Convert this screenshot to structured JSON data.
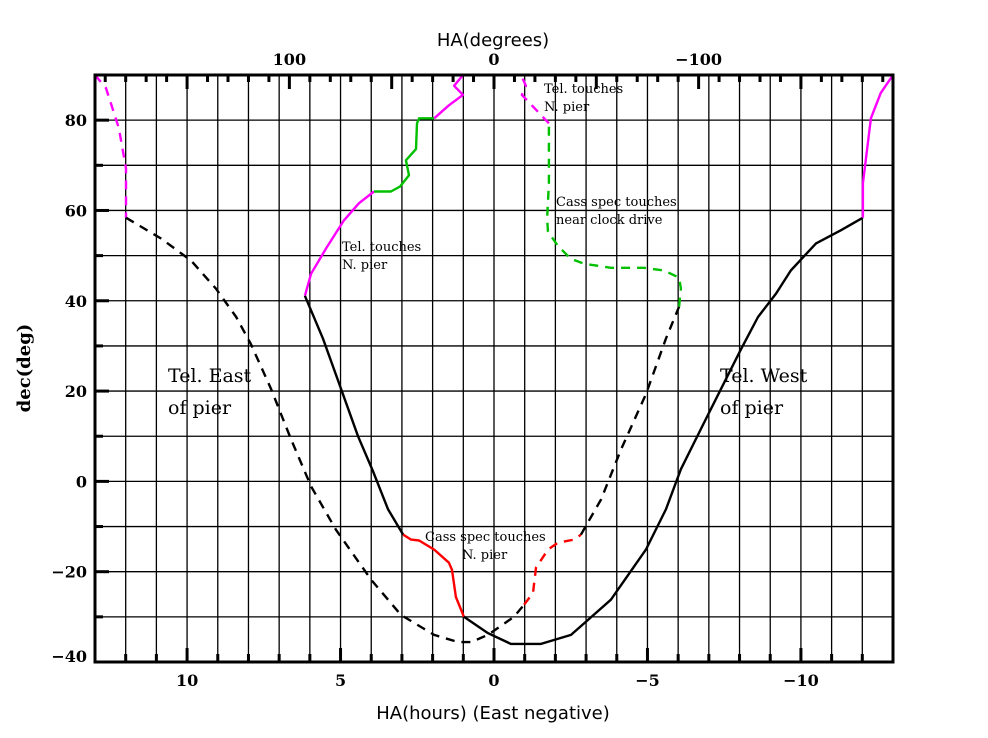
{
  "chart_data": {
    "type": "line",
    "xlabel": "HA(hours)  (East negative)",
    "ylabel": "dec(deg)",
    "top_xlabel": "HA(degrees)",
    "xlim": [
      13,
      -13
    ],
    "ylim": [
      -40,
      90
    ],
    "x_ticks": [
      10,
      5,
      0,
      -5,
      -10
    ],
    "y_ticks": [
      80,
      60,
      40,
      20,
      0,
      -20,
      -40
    ],
    "top_ticks_deg": [
      100,
      0,
      -100
    ],
    "grid": true,
    "colors": {
      "black": "#000000",
      "magenta": "#ff00ff",
      "green": "#00c000",
      "red": "#ff0000"
    },
    "series": [
      {
        "color": "magenta",
        "style": "solid",
        "points": [
          [
            6.16,
            41.1
          ],
          [
            5.96,
            46
          ],
          [
            5.47,
            51.6
          ],
          [
            4.89,
            57.8
          ],
          [
            4.4,
            61.6
          ],
          [
            3.91,
            64.2
          ]
        ]
      },
      {
        "color": "green",
        "style": "solid",
        "points": [
          [
            3.91,
            64.2
          ],
          [
            3.36,
            64.2
          ],
          [
            3.06,
            65.3
          ],
          [
            2.77,
            67.8
          ],
          [
            2.87,
            71.1
          ],
          [
            2.54,
            73.6
          ],
          [
            2.51,
            79.3
          ],
          [
            2.44,
            80.4
          ],
          [
            1.95,
            80.4
          ]
        ]
      },
      {
        "color": "magenta",
        "style": "solid",
        "points": [
          [
            1.95,
            80.4
          ],
          [
            1.47,
            83.3
          ],
          [
            1.01,
            85.6
          ],
          [
            1.3,
            87.6
          ],
          [
            1.01,
            90
          ]
        ]
      },
      {
        "color": "black",
        "style": "solid",
        "points": [
          [
            6.16,
            41.1
          ],
          [
            5.57,
            31.6
          ],
          [
            4.98,
            20.4
          ],
          [
            4.43,
            10
          ],
          [
            3.94,
            2.2
          ],
          [
            3.45,
            -6.2
          ],
          [
            2.96,
            -11.8
          ]
        ]
      },
      {
        "color": "red",
        "style": "solid",
        "points": [
          [
            2.96,
            -11.8
          ],
          [
            2.7,
            -12.9
          ],
          [
            2.44,
            -13.1
          ],
          [
            1.95,
            -15.1
          ],
          [
            1.47,
            -18
          ],
          [
            1.37,
            -19.6
          ],
          [
            1.24,
            -25.6
          ],
          [
            0.98,
            -30
          ]
        ]
      },
      {
        "color": "black",
        "style": "solid",
        "points": [
          [
            0.98,
            -30
          ],
          [
            0.2,
            -33.6
          ],
          [
            -0.55,
            -36
          ],
          [
            -1.53,
            -36
          ],
          [
            -2.51,
            -34
          ],
          [
            -3.06,
            -30.7
          ],
          [
            -3.81,
            -26.2
          ],
          [
            -4.95,
            -15.1
          ],
          [
            -5.6,
            -6.2
          ],
          [
            -6.09,
            2.7
          ],
          [
            -6.74,
            11.6
          ],
          [
            -7.39,
            20.4
          ],
          [
            -8.05,
            29.3
          ],
          [
            -8.6,
            36.4
          ],
          [
            -9.19,
            41.6
          ],
          [
            -9.67,
            46.7
          ],
          [
            -10.49,
            52.7
          ],
          [
            -11.3,
            55.6
          ],
          [
            -12.02,
            58.4
          ]
        ]
      },
      {
        "color": "magenta",
        "style": "solid",
        "points": [
          [
            -12.02,
            58.4
          ],
          [
            -12.02,
            66
          ],
          [
            -12.28,
            80.4
          ],
          [
            -12.6,
            86
          ],
          [
            -13,
            90
          ]
        ]
      },
      {
        "color": "magenta",
        "style": "dashed",
        "points": [
          [
            13,
            90
          ],
          [
            12.64,
            87.1
          ],
          [
            12.22,
            78.2
          ],
          [
            11.99,
            69.3
          ],
          [
            11.99,
            58.4
          ]
        ]
      },
      {
        "color": "black",
        "style": "dashed",
        "points": [
          [
            11.99,
            58.4
          ],
          [
            10.85,
            53.8
          ],
          [
            9.87,
            48.9
          ],
          [
            9.06,
            42.7
          ],
          [
            8.4,
            36.4
          ],
          [
            7.92,
            30.4
          ],
          [
            7.26,
            20.4
          ],
          [
            6.61,
            9.3
          ],
          [
            5.96,
            -1.1
          ],
          [
            5.15,
            -10.7
          ],
          [
            4.0,
            -21.8
          ],
          [
            3.03,
            -29.6
          ],
          [
            1.95,
            -34
          ],
          [
            1.17,
            -35.6
          ],
          [
            0.75,
            -35.6
          ],
          [
            0.2,
            -34
          ],
          [
            -0.65,
            -30
          ],
          [
            -0.98,
            -27.3
          ]
        ]
      },
      {
        "color": "red",
        "style": "dashed",
        "points": [
          [
            -0.98,
            -27.3
          ],
          [
            -1.27,
            -24.7
          ],
          [
            -1.37,
            -19.1
          ],
          [
            -1.76,
            -15.1
          ],
          [
            -2.08,
            -13.6
          ],
          [
            -2.61,
            -12.9
          ],
          [
            -2.83,
            -11.8
          ]
        ]
      },
      {
        "color": "black",
        "style": "dashed",
        "points": [
          [
            -2.83,
            -11.8
          ],
          [
            -3.49,
            -4
          ],
          [
            -4.14,
            7.1
          ],
          [
            -4.95,
            19.3
          ],
          [
            -5.6,
            31.6
          ],
          [
            -6.03,
            38.7
          ]
        ]
      },
      {
        "color": "green",
        "style": "dashed",
        "points": [
          [
            -6.03,
            38.7
          ],
          [
            -6.09,
            42.7
          ],
          [
            -6.03,
            45.1
          ],
          [
            -5.54,
            46.7
          ],
          [
            -4.89,
            47.3
          ],
          [
            -3.81,
            47.3
          ],
          [
            -2.93,
            48.2
          ],
          [
            -2.5,
            49.3
          ],
          [
            -2.08,
            52.2
          ],
          [
            -1.76,
            55.3
          ],
          [
            -1.73,
            58.2
          ],
          [
            -1.79,
            66
          ],
          [
            -1.79,
            79.3
          ]
        ]
      },
      {
        "color": "magenta",
        "style": "dashed",
        "points": [
          [
            -1.79,
            79.3
          ],
          [
            -0.91,
            85.6
          ],
          [
            -1.04,
            87.6
          ],
          [
            -0.88,
            90
          ]
        ]
      }
    ],
    "annotations": [
      {
        "id": "tel-n-pier-top",
        "lines": [
          "Tel. touches",
          "N. pier"
        ]
      },
      {
        "id": "cass-clock",
        "lines": [
          "Cass spec touches",
          "near clock drive"
        ]
      },
      {
        "id": "tel-n-pier-left",
        "lines": [
          "Tel. touches",
          "N. pier"
        ]
      },
      {
        "id": "cass-n-pier",
        "lines": [
          "Cass spec touches",
          "N. pier"
        ]
      },
      {
        "id": "tel-east",
        "lines": [
          "Tel. East",
          "of pier"
        ]
      },
      {
        "id": "tel-west",
        "lines": [
          "Tel. West",
          "of pier"
        ]
      }
    ]
  }
}
